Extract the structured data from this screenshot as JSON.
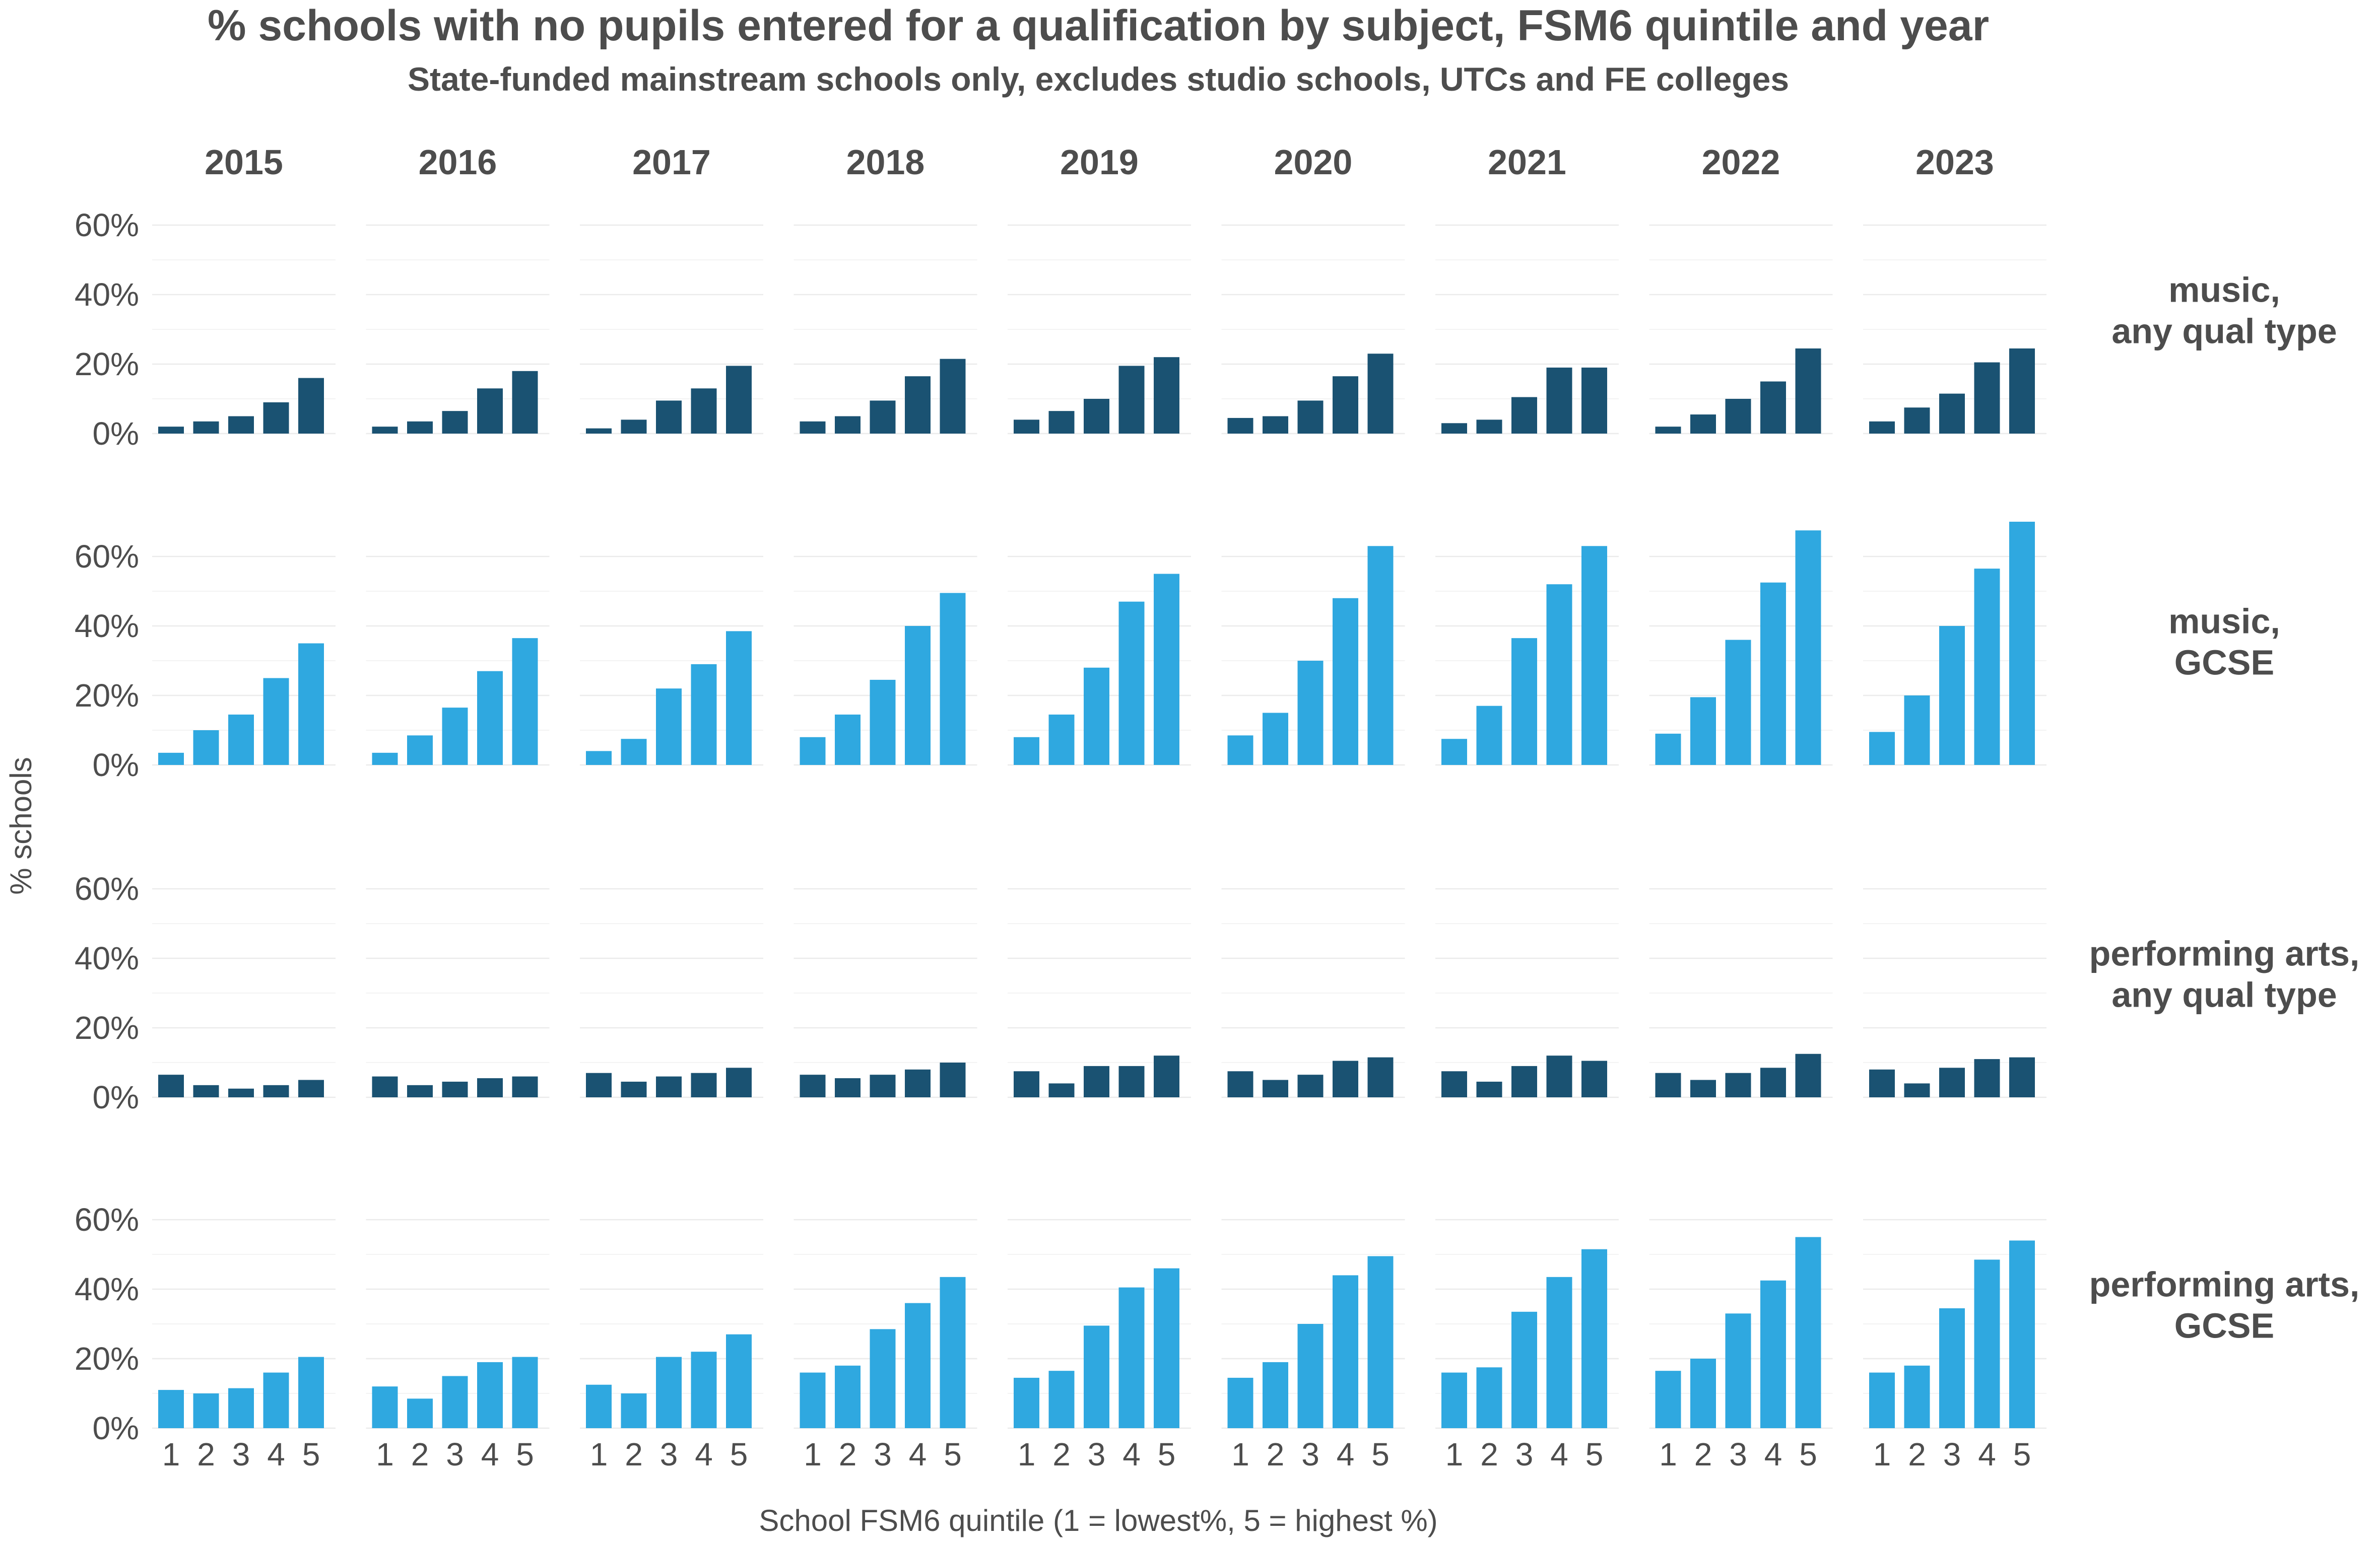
{
  "chart_data": {
    "type": "bar",
    "title": "% schools with no pupils entered for a qualification by subject, FSM6 quintile and year",
    "subtitle": "State-funded mainstream schools only, excludes studio schools, UTCs and FE colleges",
    "xlabel": "School FSM6 quintile (1 = lowest%, 5 = highest %)",
    "ylabel": "% schools",
    "ylim": [
      0,
      70
    ],
    "y_ticks": [
      "0%",
      "20%",
      "40%",
      "60%"
    ],
    "grid": true,
    "facet_columns": [
      "2015",
      "2016",
      "2017",
      "2018",
      "2019",
      "2020",
      "2021",
      "2022",
      "2023"
    ],
    "categories": [
      "1",
      "2",
      "3",
      "4",
      "5"
    ],
    "panels": [
      {
        "label": "music,\nany qual type",
        "color": "#1a5272",
        "values": [
          [
            2,
            3.5,
            5,
            9,
            16
          ],
          [
            2,
            3.5,
            6.5,
            13,
            18
          ],
          [
            1.5,
            4,
            9.5,
            13,
            19.5
          ],
          [
            3.5,
            5,
            9.5,
            16.5,
            21.5
          ],
          [
            4,
            6.5,
            10,
            19.5,
            22
          ],
          [
            4.5,
            5,
            9.5,
            16.5,
            23
          ],
          [
            3,
            4,
            10.5,
            19,
            19
          ],
          [
            2,
            5.5,
            10,
            15,
            24.5
          ],
          [
            3.5,
            7.5,
            11.5,
            20.5,
            24.5
          ]
        ]
      },
      {
        "label": "music,\nGCSE",
        "color": "#2fa8e0",
        "values": [
          [
            3.5,
            10,
            14.5,
            25,
            35
          ],
          [
            3.5,
            8.5,
            16.5,
            27,
            36.5
          ],
          [
            4,
            7.5,
            22,
            29,
            38.5
          ],
          [
            8,
            14.5,
            24.5,
            40,
            49.5
          ],
          [
            8,
            14.5,
            28,
            47,
            55
          ],
          [
            8.5,
            15,
            30,
            48,
            63
          ],
          [
            7.5,
            17,
            36.5,
            52,
            63
          ],
          [
            9,
            19.5,
            36,
            52.5,
            67.5
          ],
          [
            9.5,
            20,
            40,
            56.5,
            70
          ]
        ]
      },
      {
        "label": "performing arts,\nany qual type",
        "color": "#1a5272",
        "values": [
          [
            6.5,
            3.5,
            2.5,
            3.5,
            5
          ],
          [
            6,
            3.5,
            4.5,
            5.5,
            6
          ],
          [
            7,
            4.5,
            6,
            7,
            8.5
          ],
          [
            6.5,
            5.5,
            6.5,
            8,
            10
          ],
          [
            7.5,
            4,
            9,
            9,
            12
          ],
          [
            7.5,
            5,
            6.5,
            10.5,
            11.5
          ],
          [
            7.5,
            4.5,
            9,
            12,
            10.5
          ],
          [
            7,
            5,
            7,
            8.5,
            12.5
          ],
          [
            8,
            4,
            8.5,
            11,
            11.5
          ]
        ]
      },
      {
        "label": "performing arts,\nGCSE",
        "color": "#2fa8e0",
        "values": [
          [
            11,
            10,
            11.5,
            16,
            20.5
          ],
          [
            12,
            8.5,
            15,
            19,
            20.5
          ],
          [
            12.5,
            10,
            20.5,
            22,
            27
          ],
          [
            16,
            18,
            28.5,
            36,
            43.5
          ],
          [
            14.5,
            16.5,
            29.5,
            40.5,
            46
          ],
          [
            14.5,
            19,
            30,
            44,
            49.5
          ],
          [
            16,
            17.5,
            33.5,
            43.5,
            51.5
          ],
          [
            16.5,
            20,
            33,
            42.5,
            55
          ],
          [
            16,
            18,
            34.5,
            48.5,
            54
          ]
        ]
      }
    ]
  }
}
